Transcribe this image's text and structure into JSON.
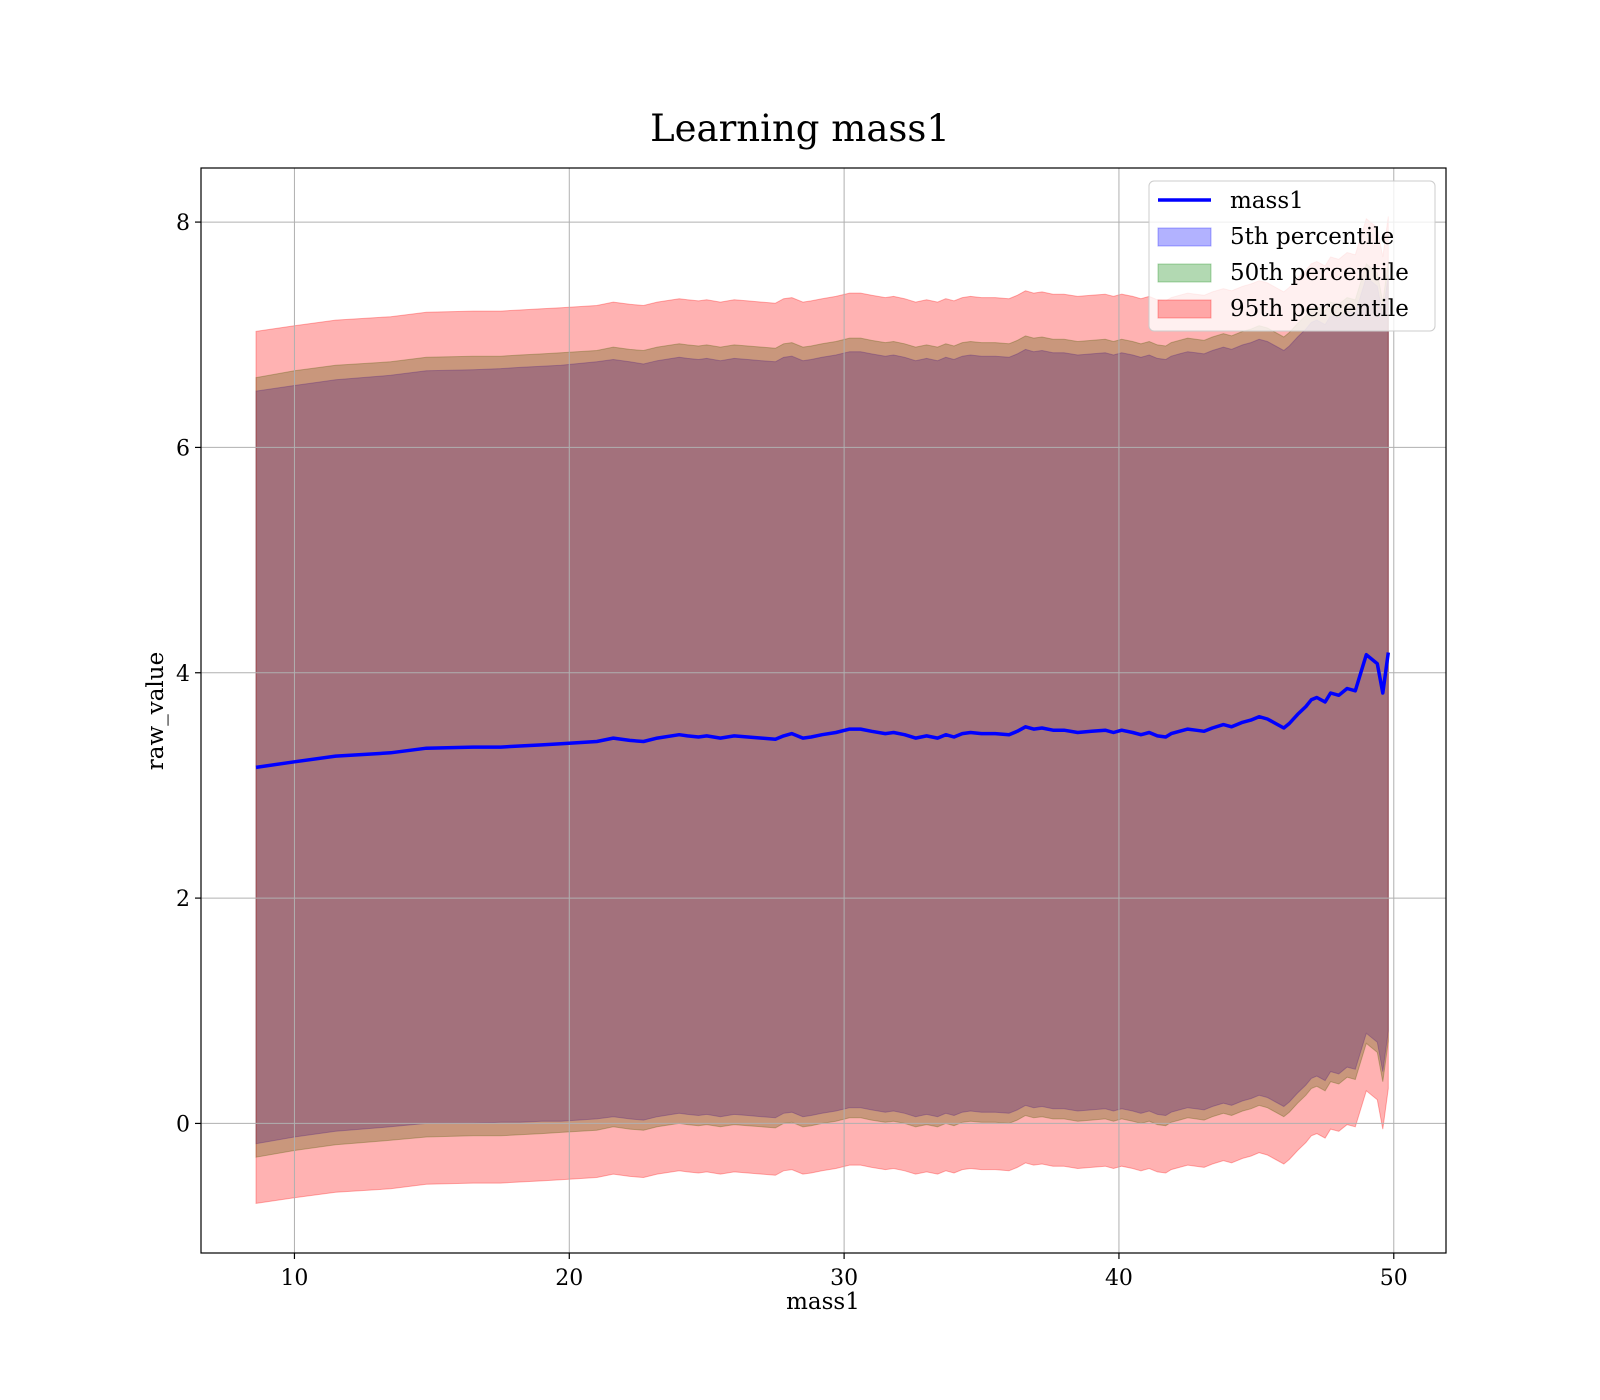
{
  "chart_data": {
    "type": "area",
    "title": "Learning mass1",
    "xlabel": "mass1",
    "ylabel": "raw_value",
    "xlim": [
      6.6,
      51.9
    ],
    "ylim": [
      -1.15,
      8.48
    ],
    "xticks": [
      10,
      20,
      30,
      40,
      50
    ],
    "yticks": [
      0,
      2,
      4,
      6,
      8
    ],
    "xtick_labels": [
      "10",
      "20",
      "30",
      "40",
      "50"
    ],
    "ytick_labels": [
      "0",
      "2",
      "4",
      "6",
      "8"
    ],
    "grid": true,
    "legend_position": "top-right",
    "legend": [
      {
        "label": "mass1",
        "kind": "line",
        "color": "#0000ff"
      },
      {
        "label": "5th percentile",
        "kind": "patch",
        "color": "#0000ff"
      },
      {
        "label": "50th percentile",
        "kind": "patch",
        "color": "#008000"
      },
      {
        "label": "95th percentile",
        "kind": "patch",
        "color": "#ff0000"
      }
    ],
    "x": [
      8.6,
      10.0,
      11.5,
      13.5,
      14.8,
      16.5,
      17.5,
      18.2,
      19.0,
      19.7,
      21.0,
      21.6,
      22.2,
      22.7,
      23.2,
      24.0,
      24.3,
      24.7,
      25.0,
      25.5,
      26.0,
      26.5,
      27.0,
      27.5,
      27.8,
      28.1,
      28.5,
      28.8,
      29.2,
      29.7,
      30.2,
      30.6,
      31.0,
      31.5,
      31.8,
      32.2,
      32.6,
      33.0,
      33.4,
      33.7,
      34.0,
      34.3,
      34.6,
      35.0,
      35.5,
      36.0,
      36.3,
      36.6,
      36.9,
      37.2,
      37.6,
      38.0,
      38.5,
      39.0,
      39.5,
      39.8,
      40.1,
      40.5,
      40.8,
      41.1,
      41.4,
      41.7,
      41.9,
      42.2,
      42.5,
      42.8,
      43.1,
      43.4,
      43.8,
      44.1,
      44.5,
      44.8,
      45.1,
      45.4,
      45.7,
      46.0,
      46.2,
      46.5,
      46.8,
      47.0,
      47.2,
      47.5,
      47.7,
      48.0,
      48.3,
      48.6,
      49.0,
      49.4,
      49.6,
      49.8
    ],
    "series": [
      {
        "name": "mass1",
        "values": [
          3.16,
          3.21,
          3.26,
          3.29,
          3.33,
          3.34,
          3.34,
          3.35,
          3.36,
          3.37,
          3.39,
          3.42,
          3.4,
          3.39,
          3.42,
          3.45,
          3.44,
          3.43,
          3.44,
          3.42,
          3.44,
          3.43,
          3.42,
          3.41,
          3.44,
          3.46,
          3.42,
          3.43,
          3.45,
          3.47,
          3.5,
          3.5,
          3.48,
          3.46,
          3.47,
          3.45,
          3.42,
          3.44,
          3.42,
          3.45,
          3.43,
          3.46,
          3.47,
          3.46,
          3.46,
          3.45,
          3.48,
          3.52,
          3.5,
          3.51,
          3.49,
          3.49,
          3.47,
          3.48,
          3.49,
          3.47,
          3.49,
          3.47,
          3.45,
          3.47,
          3.44,
          3.43,
          3.46,
          3.48,
          3.5,
          3.49,
          3.48,
          3.51,
          3.54,
          3.52,
          3.56,
          3.58,
          3.61,
          3.59,
          3.55,
          3.51,
          3.55,
          3.63,
          3.7,
          3.76,
          3.78,
          3.74,
          3.82,
          3.8,
          3.86,
          3.84,
          4.16,
          4.08,
          3.82,
          4.18
        ]
      },
      {
        "name": "5th percentile",
        "lower": [
          -0.18,
          -0.12,
          -0.07,
          -0.03,
          0.0,
          0.0,
          0.01,
          0.01,
          0.02,
          0.02,
          0.04,
          0.06,
          0.04,
          0.03,
          0.06,
          0.09,
          0.08,
          0.07,
          0.08,
          0.06,
          0.08,
          0.07,
          0.06,
          0.05,
          0.09,
          0.1,
          0.06,
          0.07,
          0.09,
          0.11,
          0.14,
          0.14,
          0.12,
          0.1,
          0.11,
          0.09,
          0.06,
          0.08,
          0.06,
          0.09,
          0.07,
          0.1,
          0.11,
          0.1,
          0.1,
          0.09,
          0.12,
          0.16,
          0.14,
          0.15,
          0.13,
          0.13,
          0.11,
          0.12,
          0.13,
          0.11,
          0.13,
          0.11,
          0.09,
          0.11,
          0.08,
          0.07,
          0.1,
          0.12,
          0.14,
          0.13,
          0.12,
          0.15,
          0.18,
          0.16,
          0.2,
          0.22,
          0.25,
          0.23,
          0.19,
          0.15,
          0.19,
          0.27,
          0.34,
          0.4,
          0.42,
          0.38,
          0.46,
          0.44,
          0.5,
          0.48,
          0.8,
          0.72,
          0.46,
          0.82
        ],
        "upper": [
          6.5,
          6.55,
          6.6,
          6.64,
          6.68,
          6.69,
          6.7,
          6.71,
          6.72,
          6.73,
          6.76,
          6.78,
          6.76,
          6.74,
          6.77,
          6.8,
          6.79,
          6.78,
          6.79,
          6.77,
          6.79,
          6.78,
          6.77,
          6.76,
          6.8,
          6.81,
          6.77,
          6.78,
          6.8,
          6.82,
          6.85,
          6.85,
          6.83,
          6.81,
          6.82,
          6.8,
          6.77,
          6.79,
          6.77,
          6.8,
          6.78,
          6.81,
          6.82,
          6.81,
          6.81,
          6.8,
          6.83,
          6.87,
          6.85,
          6.86,
          6.84,
          6.84,
          6.82,
          6.83,
          6.84,
          6.82,
          6.84,
          6.82,
          6.8,
          6.82,
          6.79,
          6.78,
          6.81,
          6.83,
          6.85,
          6.84,
          6.83,
          6.86,
          6.89,
          6.87,
          6.91,
          6.93,
          6.96,
          6.94,
          6.9,
          6.86,
          6.9,
          6.98,
          7.05,
          7.11,
          7.13,
          7.09,
          7.17,
          7.15,
          7.21,
          7.19,
          7.51,
          7.43,
          7.17,
          7.53
        ]
      },
      {
        "name": "50th percentile",
        "lower": [
          -0.3,
          -0.24,
          -0.19,
          -0.15,
          -0.12,
          -0.11,
          -0.11,
          -0.1,
          -0.09,
          -0.08,
          -0.06,
          -0.03,
          -0.05,
          -0.06,
          -0.03,
          0.0,
          -0.01,
          -0.02,
          -0.01,
          -0.03,
          -0.01,
          -0.02,
          -0.03,
          -0.04,
          0.0,
          0.01,
          -0.03,
          -0.02,
          0.0,
          0.02,
          0.05,
          0.05,
          0.03,
          0.01,
          0.02,
          0.0,
          -0.03,
          -0.01,
          -0.03,
          0.0,
          -0.02,
          0.01,
          0.02,
          0.01,
          0.01,
          0.0,
          0.03,
          0.07,
          0.05,
          0.06,
          0.04,
          0.04,
          0.02,
          0.03,
          0.04,
          0.02,
          0.04,
          0.02,
          0.0,
          0.02,
          -0.01,
          -0.02,
          0.01,
          0.03,
          0.05,
          0.04,
          0.03,
          0.06,
          0.09,
          0.07,
          0.11,
          0.13,
          0.16,
          0.14,
          0.1,
          0.06,
          0.1,
          0.18,
          0.25,
          0.31,
          0.33,
          0.29,
          0.37,
          0.35,
          0.41,
          0.39,
          0.71,
          0.63,
          0.37,
          0.73
        ],
        "upper": [
          6.62,
          6.68,
          6.73,
          6.76,
          6.8,
          6.81,
          6.81,
          6.82,
          6.83,
          6.84,
          6.86,
          6.89,
          6.87,
          6.86,
          6.89,
          6.92,
          6.91,
          6.9,
          6.91,
          6.89,
          6.91,
          6.9,
          6.89,
          6.88,
          6.92,
          6.93,
          6.89,
          6.9,
          6.92,
          6.94,
          6.97,
          6.97,
          6.95,
          6.93,
          6.94,
          6.92,
          6.89,
          6.91,
          6.89,
          6.92,
          6.9,
          6.93,
          6.94,
          6.93,
          6.93,
          6.92,
          6.95,
          6.99,
          6.97,
          6.98,
          6.96,
          6.96,
          6.94,
          6.95,
          6.96,
          6.94,
          6.96,
          6.94,
          6.92,
          6.94,
          6.91,
          6.9,
          6.93,
          6.95,
          6.97,
          6.96,
          6.95,
          6.98,
          7.01,
          6.99,
          7.03,
          7.05,
          7.08,
          7.06,
          7.02,
          6.98,
          7.02,
          7.1,
          7.17,
          7.23,
          7.25,
          7.21,
          7.29,
          7.27,
          7.33,
          7.31,
          7.63,
          7.55,
          7.29,
          7.65
        ]
      },
      {
        "name": "95th percentile",
        "lower": [
          -0.71,
          -0.66,
          -0.61,
          -0.58,
          -0.54,
          -0.53,
          -0.53,
          -0.52,
          -0.51,
          -0.5,
          -0.48,
          -0.45,
          -0.47,
          -0.48,
          -0.45,
          -0.42,
          -0.43,
          -0.44,
          -0.43,
          -0.45,
          -0.43,
          -0.44,
          -0.45,
          -0.46,
          -0.42,
          -0.41,
          -0.45,
          -0.44,
          -0.42,
          -0.4,
          -0.37,
          -0.37,
          -0.39,
          -0.41,
          -0.4,
          -0.42,
          -0.45,
          -0.43,
          -0.45,
          -0.42,
          -0.44,
          -0.41,
          -0.4,
          -0.41,
          -0.41,
          -0.42,
          -0.39,
          -0.35,
          -0.37,
          -0.36,
          -0.38,
          -0.38,
          -0.4,
          -0.39,
          -0.38,
          -0.4,
          -0.38,
          -0.4,
          -0.42,
          -0.4,
          -0.43,
          -0.44,
          -0.41,
          -0.39,
          -0.37,
          -0.38,
          -0.39,
          -0.36,
          -0.33,
          -0.35,
          -0.31,
          -0.29,
          -0.26,
          -0.28,
          -0.32,
          -0.36,
          -0.32,
          -0.24,
          -0.17,
          -0.11,
          -0.09,
          -0.13,
          -0.05,
          -0.07,
          -0.01,
          -0.03,
          0.29,
          0.21,
          -0.05,
          0.31
        ],
        "upper": [
          7.03,
          7.08,
          7.13,
          7.16,
          7.2,
          7.21,
          7.21,
          7.22,
          7.23,
          7.24,
          7.26,
          7.29,
          7.27,
          7.26,
          7.29,
          7.32,
          7.31,
          7.3,
          7.31,
          7.29,
          7.31,
          7.3,
          7.29,
          7.28,
          7.32,
          7.33,
          7.29,
          7.3,
          7.32,
          7.34,
          7.37,
          7.37,
          7.35,
          7.33,
          7.34,
          7.32,
          7.29,
          7.31,
          7.29,
          7.32,
          7.3,
          7.33,
          7.34,
          7.33,
          7.33,
          7.32,
          7.35,
          7.39,
          7.37,
          7.38,
          7.36,
          7.36,
          7.34,
          7.35,
          7.36,
          7.34,
          7.36,
          7.34,
          7.32,
          7.34,
          7.31,
          7.3,
          7.33,
          7.35,
          7.37,
          7.36,
          7.35,
          7.38,
          7.41,
          7.39,
          7.43,
          7.45,
          7.48,
          7.46,
          7.42,
          7.38,
          7.42,
          7.5,
          7.57,
          7.63,
          7.65,
          7.61,
          7.69,
          7.67,
          7.73,
          7.71,
          8.03,
          7.95,
          7.69,
          8.05
        ]
      }
    ],
    "colors": {
      "line": "#0000ff",
      "band_5th": "#0000ff",
      "band_50th": "#008000",
      "band_95th": "#ff0000",
      "grid": "#b0b0b0",
      "axes": "#000000"
    }
  }
}
